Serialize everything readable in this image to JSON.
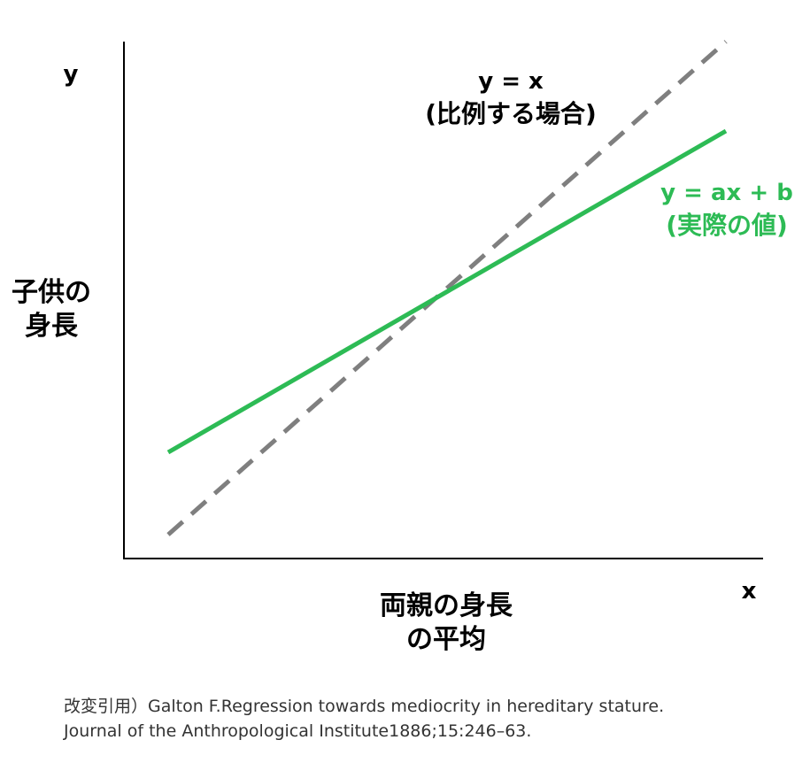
{
  "axes": {
    "y_symbol": "y",
    "x_symbol": "x",
    "y_label_lines": [
      "子供の",
      "身長"
    ],
    "x_label_lines": [
      "両親の身長",
      "の平均"
    ]
  },
  "lines": {
    "proportional": {
      "equation": "y = x",
      "caption": "(比例する場合)",
      "color": "#7f7f7f",
      "style": "dashed"
    },
    "actual": {
      "equation": "y = ax + b",
      "caption": "(実際の値)",
      "color": "#2dbb55",
      "style": "solid"
    }
  },
  "citation": {
    "line1": "改変引用）Galton F.Regression towards mediocrity in hereditary stature.",
    "line2": "Journal of the Anthropological Institute1886;15:246–63."
  }
}
